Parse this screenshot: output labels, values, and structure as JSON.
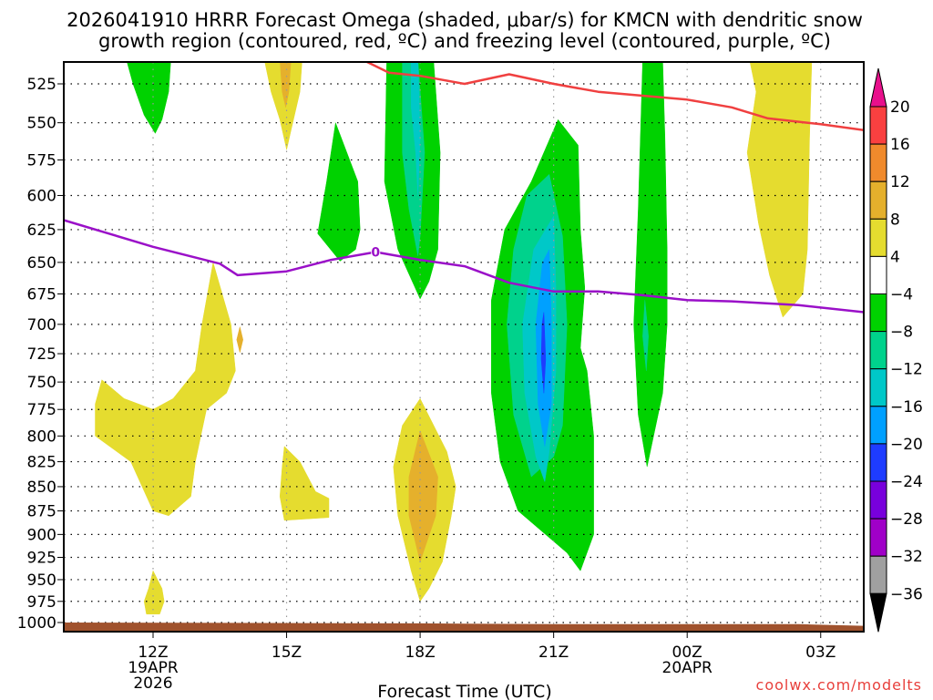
{
  "chart_data": {
    "type": "heatmap",
    "title_line1": "2026041910 HRRR Forecast Omega (shaded, μbar/s) for KMCN with dendritic snow",
    "title_line2": "growth region (contoured, red, ºC) and freezing level (contoured, purple, ºC)",
    "xlabel": "Forecast Time (UTC)",
    "ylabel": "",
    "credit": "coolwx.com/modelts",
    "x_axis": {
      "units": "hours since 12Z 19APR2026",
      "range": [
        -2.0,
        16.0
      ],
      "ticks": [
        {
          "hour": 0,
          "label": "12Z",
          "sub1": "19APR",
          "sub2": "2026"
        },
        {
          "hour": 3,
          "label": "15Z",
          "sub1": "",
          "sub2": ""
        },
        {
          "hour": 6,
          "label": "18Z",
          "sub1": "",
          "sub2": ""
        },
        {
          "hour": 9,
          "label": "21Z",
          "sub1": "",
          "sub2": ""
        },
        {
          "hour": 12,
          "label": "00Z",
          "sub1": "20APR",
          "sub2": ""
        },
        {
          "hour": 15,
          "label": "03Z",
          "sub1": "",
          "sub2": ""
        }
      ]
    },
    "y_axis": {
      "units": "hPa",
      "scale": "log",
      "range": [
        1007,
        510
      ],
      "ticks": [
        525,
        550,
        575,
        600,
        625,
        650,
        675,
        700,
        725,
        750,
        775,
        800,
        825,
        850,
        875,
        900,
        925,
        950,
        975,
        1000
      ],
      "grid": "dotted"
    },
    "colorbar": {
      "units": "μbar/s",
      "levels": [
        "20",
        "16",
        "12",
        "8",
        "4",
        "−4",
        "−8",
        "−12",
        "−16",
        "−20",
        "−24",
        "−28",
        "−32",
        "−36"
      ],
      "colors_top_to_bottom": [
        "#e8108c",
        "#fa4040",
        "#f08a2c",
        "#e5b02c",
        "#e5dc2f",
        "#ffffff",
        "#00d200",
        "#00d28c",
        "#00c8c8",
        "#00a0ff",
        "#1e3cff",
        "#7800dc",
        "#a000c8",
        "#a0a0a0",
        "#000000"
      ]
    },
    "shaded_regions": [
      {
        "level": "-4..-8",
        "color": "#00d200",
        "points": [
          [
            -0.6,
            510
          ],
          [
            0.4,
            510
          ],
          [
            0.35,
            530
          ],
          [
            0.2,
            548
          ],
          [
            0.05,
            557
          ],
          [
            -0.2,
            545
          ],
          [
            -0.45,
            525
          ]
        ]
      },
      {
        "level": "4..8",
        "color": "#e5dc2f",
        "points": [
          [
            2.5,
            510
          ],
          [
            3.35,
            510
          ],
          [
            3.3,
            530
          ],
          [
            3.1,
            555
          ],
          [
            3.0,
            568
          ],
          [
            2.85,
            548
          ],
          [
            2.65,
            530
          ]
        ]
      },
      {
        "level": "8..12",
        "color": "#e5b02c",
        "points": [
          [
            2.85,
            510
          ],
          [
            3.1,
            510
          ],
          [
            3.05,
            530
          ],
          [
            2.98,
            540
          ],
          [
            2.9,
            530
          ]
        ]
      },
      {
        "level": "-4..-8",
        "color": "#00d200",
        "points": [
          [
            4.1,
            550
          ],
          [
            4.6,
            590
          ],
          [
            4.65,
            625
          ],
          [
            4.55,
            640
          ],
          [
            4.2,
            649
          ],
          [
            3.7,
            628
          ],
          [
            3.9,
            590
          ]
        ]
      },
      {
        "level": "-4..-8",
        "color": "#00d200",
        "points": [
          [
            5.25,
            510
          ],
          [
            6.3,
            510
          ],
          [
            6.45,
            570
          ],
          [
            6.4,
            640
          ],
          [
            6.2,
            665
          ],
          [
            6.0,
            679
          ],
          [
            5.5,
            640
          ],
          [
            5.2,
            590
          ]
        ]
      },
      {
        "level": "-8..-12",
        "color": "#00d28c",
        "points": [
          [
            5.6,
            510
          ],
          [
            5.95,
            510
          ],
          [
            6.1,
            570
          ],
          [
            6.0,
            630
          ],
          [
            5.95,
            645
          ],
          [
            5.75,
            610
          ],
          [
            5.6,
            570
          ]
        ]
      },
      {
        "level": "-12..-16",
        "color": "#00c8c8",
        "points": [
          [
            5.8,
            510
          ],
          [
            5.95,
            510
          ],
          [
            6.0,
            560
          ],
          [
            5.95,
            600
          ],
          [
            5.9,
            570
          ],
          [
            5.8,
            540
          ]
        ]
      },
      {
        "level": "-4..-8",
        "color": "#00d200",
        "points": [
          [
            8.5,
            590
          ],
          [
            9.1,
            548
          ],
          [
            9.55,
            565
          ],
          [
            9.6,
            625
          ],
          [
            9.7,
            670
          ],
          [
            9.6,
            720
          ],
          [
            9.75,
            740
          ],
          [
            9.9,
            800
          ],
          [
            9.9,
            900
          ],
          [
            9.6,
            940
          ],
          [
            9.3,
            920
          ],
          [
            8.2,
            875
          ],
          [
            7.8,
            825
          ],
          [
            7.6,
            760
          ],
          [
            7.6,
            680
          ],
          [
            7.9,
            625
          ]
        ]
      },
      {
        "level": "-8..-12",
        "color": "#00d28c",
        "points": [
          [
            8.9,
            585
          ],
          [
            9.2,
            630
          ],
          [
            9.3,
            700
          ],
          [
            9.2,
            790
          ],
          [
            9.0,
            820
          ],
          [
            8.5,
            840
          ],
          [
            8.1,
            780
          ],
          [
            7.95,
            700
          ],
          [
            8.1,
            640
          ],
          [
            8.4,
            600
          ]
        ]
      },
      {
        "level": "-12..-16",
        "color": "#00c8c8",
        "points": [
          [
            9.0,
            615
          ],
          [
            9.05,
            670
          ],
          [
            9.05,
            740
          ],
          [
            8.9,
            815
          ],
          [
            8.8,
            845
          ],
          [
            8.6,
            820
          ],
          [
            8.35,
            760
          ],
          [
            8.3,
            700
          ],
          [
            8.55,
            640
          ]
        ]
      },
      {
        "level": "-16..-20",
        "color": "#00a0ff",
        "points": [
          [
            8.9,
            640
          ],
          [
            8.95,
            700
          ],
          [
            8.95,
            770
          ],
          [
            8.8,
            810
          ],
          [
            8.65,
            770
          ],
          [
            8.6,
            700
          ],
          [
            8.75,
            650
          ]
        ]
      },
      {
        "level": "-20..-24",
        "color": "#1e3cff",
        "points": [
          [
            8.78,
            690
          ],
          [
            8.82,
            730
          ],
          [
            8.78,
            760
          ],
          [
            8.72,
            730
          ],
          [
            8.74,
            700
          ]
        ]
      },
      {
        "level": "-4..-8",
        "color": "#00d200",
        "points": [
          [
            11.0,
            510
          ],
          [
            11.45,
            510
          ],
          [
            11.5,
            560
          ],
          [
            11.55,
            640
          ],
          [
            11.55,
            700
          ],
          [
            11.45,
            760
          ],
          [
            11.1,
            830
          ],
          [
            10.9,
            780
          ],
          [
            10.8,
            700
          ],
          [
            10.9,
            610
          ]
        ]
      },
      {
        "level": "-8..-12",
        "color": "#00d28c",
        "points": [
          [
            11.05,
            680
          ],
          [
            11.13,
            710
          ],
          [
            11.08,
            740
          ],
          [
            11.0,
            710
          ]
        ]
      },
      {
        "level": "4..8",
        "color": "#e5dc2f",
        "points": [
          [
            13.4,
            510
          ],
          [
            14.8,
            510
          ],
          [
            14.75,
            560
          ],
          [
            14.7,
            640
          ],
          [
            14.6,
            675
          ],
          [
            14.15,
            694
          ],
          [
            13.85,
            660
          ],
          [
            13.6,
            620
          ],
          [
            13.35,
            570
          ],
          [
            13.55,
            530
          ]
        ]
      },
      {
        "level": "4..8",
        "color": "#e5dc2f",
        "points": [
          [
            1.35,
            650
          ],
          [
            1.75,
            700
          ],
          [
            1.85,
            740
          ],
          [
            1.65,
            760
          ],
          [
            1.2,
            775
          ],
          [
            0.95,
            825
          ],
          [
            0.85,
            860
          ],
          [
            0.35,
            880
          ],
          [
            0.0,
            875
          ],
          [
            -0.5,
            825
          ],
          [
            -1.3,
            800
          ],
          [
            -1.3,
            770
          ],
          [
            -1.15,
            748
          ],
          [
            -0.65,
            765
          ],
          [
            0.0,
            775
          ],
          [
            0.45,
            765
          ],
          [
            0.95,
            740
          ],
          [
            1.1,
            700
          ]
        ]
      },
      {
        "level": "8..12",
        "color": "#e5b02c",
        "points": [
          [
            1.95,
            702
          ],
          [
            2.02,
            713
          ],
          [
            1.95,
            724
          ],
          [
            1.88,
            713
          ]
        ]
      },
      {
        "level": "4..8",
        "color": "#e5dc2f",
        "points": [
          [
            2.95,
            810
          ],
          [
            3.3,
            825
          ],
          [
            3.65,
            855
          ],
          [
            3.95,
            862
          ],
          [
            3.95,
            882
          ],
          [
            2.95,
            885
          ],
          [
            2.85,
            860
          ],
          [
            2.9,
            830
          ]
        ]
      },
      {
        "level": "4..8",
        "color": "#e5dc2f",
        "points": [
          [
            6.0,
            765
          ],
          [
            6.6,
            815
          ],
          [
            6.8,
            850
          ],
          [
            6.7,
            880
          ],
          [
            6.5,
            930
          ],
          [
            6.2,
            960
          ],
          [
            6.0,
            975
          ],
          [
            5.8,
            940
          ],
          [
            5.5,
            880
          ],
          [
            5.4,
            830
          ],
          [
            5.6,
            790
          ]
        ]
      },
      {
        "level": "8..12",
        "color": "#e5b02c",
        "points": [
          [
            6.0,
            795
          ],
          [
            6.4,
            840
          ],
          [
            6.35,
            880
          ],
          [
            6.0,
            930
          ],
          [
            5.75,
            880
          ],
          [
            5.75,
            840
          ]
        ]
      },
      {
        "level": "4..8",
        "color": "#e5dc2f",
        "points": [
          [
            0.0,
            940
          ],
          [
            0.2,
            960
          ],
          [
            0.25,
            975
          ],
          [
            0.15,
            990
          ],
          [
            -0.15,
            990
          ],
          [
            -0.2,
            975
          ],
          [
            -0.1,
            960
          ]
        ]
      }
    ],
    "terrain": {
      "color": "#a0522d",
      "surface_pressure_hPa": [
        [
          -2,
          1000
        ],
        [
          6,
          1001
        ],
        [
          9,
          1002
        ],
        [
          14.5,
          1002
        ],
        [
          16,
          1004
        ]
      ]
    },
    "contours": [
      {
        "name": "dendritic-growth-region",
        "color": "#f04040",
        "label": "",
        "points": [
          [
            4.7,
            510
          ],
          [
            5.3,
            518
          ],
          [
            6.0,
            520
          ],
          [
            7.0,
            525
          ],
          [
            8.0,
            519
          ],
          [
            9.0,
            525
          ],
          [
            10.0,
            530
          ],
          [
            12.0,
            535
          ],
          [
            13.0,
            540
          ],
          [
            13.8,
            547
          ],
          [
            15.0,
            551
          ],
          [
            16.0,
            555
          ]
        ]
      },
      {
        "name": "freezing-level",
        "color": "#9a10c8",
        "label": "0",
        "points": [
          [
            -2,
            618
          ],
          [
            0.0,
            638
          ],
          [
            1.5,
            651
          ],
          [
            1.9,
            660
          ],
          [
            3.0,
            657
          ],
          [
            4.0,
            648
          ],
          [
            5.0,
            642
          ],
          [
            6.0,
            648
          ],
          [
            7.0,
            653
          ],
          [
            8.0,
            666
          ],
          [
            9.0,
            673
          ],
          [
            10.0,
            673
          ],
          [
            11.0,
            676
          ],
          [
            12.0,
            680
          ],
          [
            13.0,
            681
          ],
          [
            14.5,
            684
          ],
          [
            16,
            690
          ]
        ]
      }
    ]
  }
}
